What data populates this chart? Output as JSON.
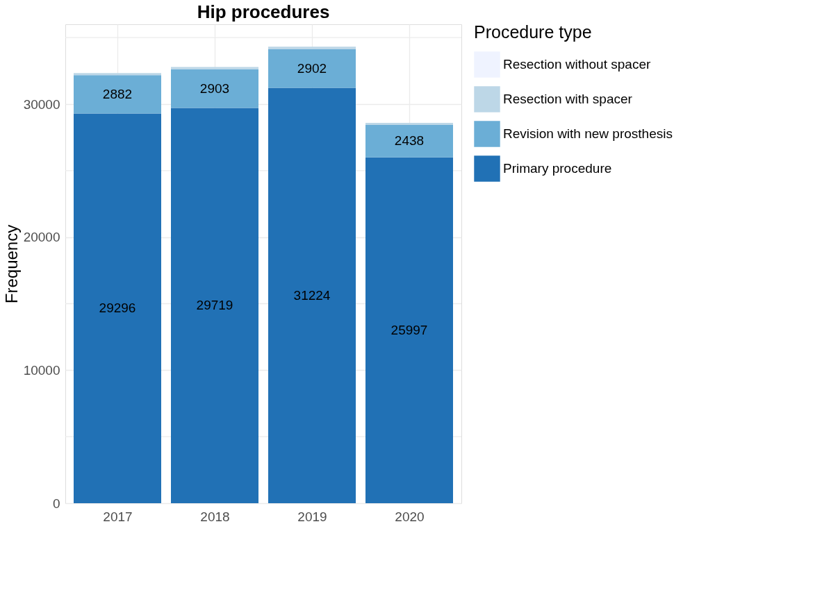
{
  "chart_data": {
    "type": "bar",
    "title": "Hip procedures",
    "ylabel": "Frequency",
    "legend_title": "Procedure type",
    "categories": [
      "2017",
      "2018",
      "2019",
      "2020"
    ],
    "stacked": true,
    "series": [
      {
        "name": "Primary procedure",
        "color": "#2171b5",
        "values": [
          29296,
          29719,
          31224,
          25997
        ],
        "value_labels": [
          "29296",
          "29719",
          "31224",
          "25997"
        ]
      },
      {
        "name": "Revision with new prosthesis",
        "color": "#6baed6",
        "values": [
          2882,
          2903,
          2902,
          2438
        ],
        "value_labels": [
          "2882",
          "2903",
          "2902",
          "2438"
        ]
      },
      {
        "name": "Resection with spacer",
        "color": "#bdd7e7",
        "values": [
          160,
          170,
          190,
          150
        ]
      },
      {
        "name": "Resection without spacer",
        "color": "#eff3ff",
        "values": [
          null,
          null,
          null,
          null
        ]
      }
    ],
    "ylim": [
      0,
      36000
    ],
    "yticks": [
      0,
      10000,
      20000,
      30000
    ],
    "grid": true,
    "legend": "right"
  }
}
